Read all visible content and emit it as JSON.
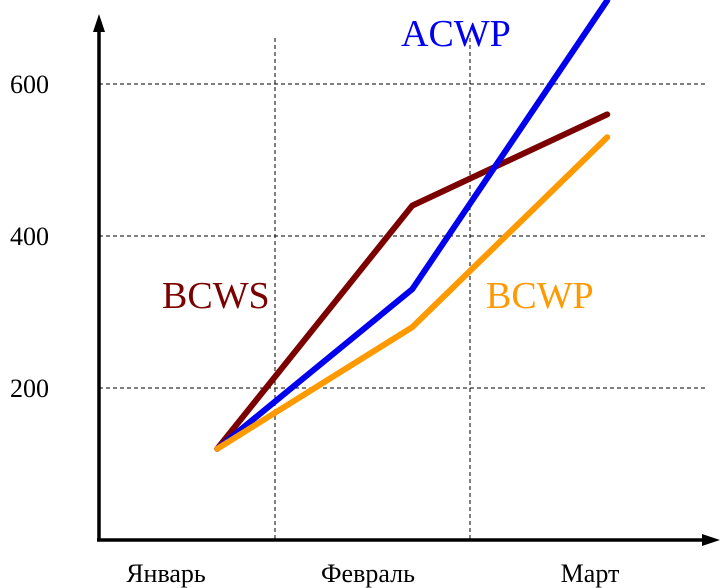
{
  "chart_data": {
    "type": "line",
    "categories": [
      "Январь",
      "Февраль",
      "Март"
    ],
    "yticks": [
      200,
      400,
      600
    ],
    "ylim": [
      0,
      700
    ],
    "grid": true,
    "series": [
      {
        "name": "BCWS",
        "color": "#7B0000",
        "x": [
          0.55,
          1.55,
          2.55
        ],
        "values": [
          120,
          440,
          560
        ]
      },
      {
        "name": "ACWP",
        "color": "#0000EE",
        "x": [
          0.55,
          1.55,
          2.55
        ],
        "values": [
          120,
          330,
          710
        ]
      },
      {
        "name": "BCWP",
        "color": "#FF9900",
        "x": [
          0.55,
          1.55,
          2.55
        ],
        "values": [
          120,
          280,
          530
        ]
      }
    ]
  }
}
